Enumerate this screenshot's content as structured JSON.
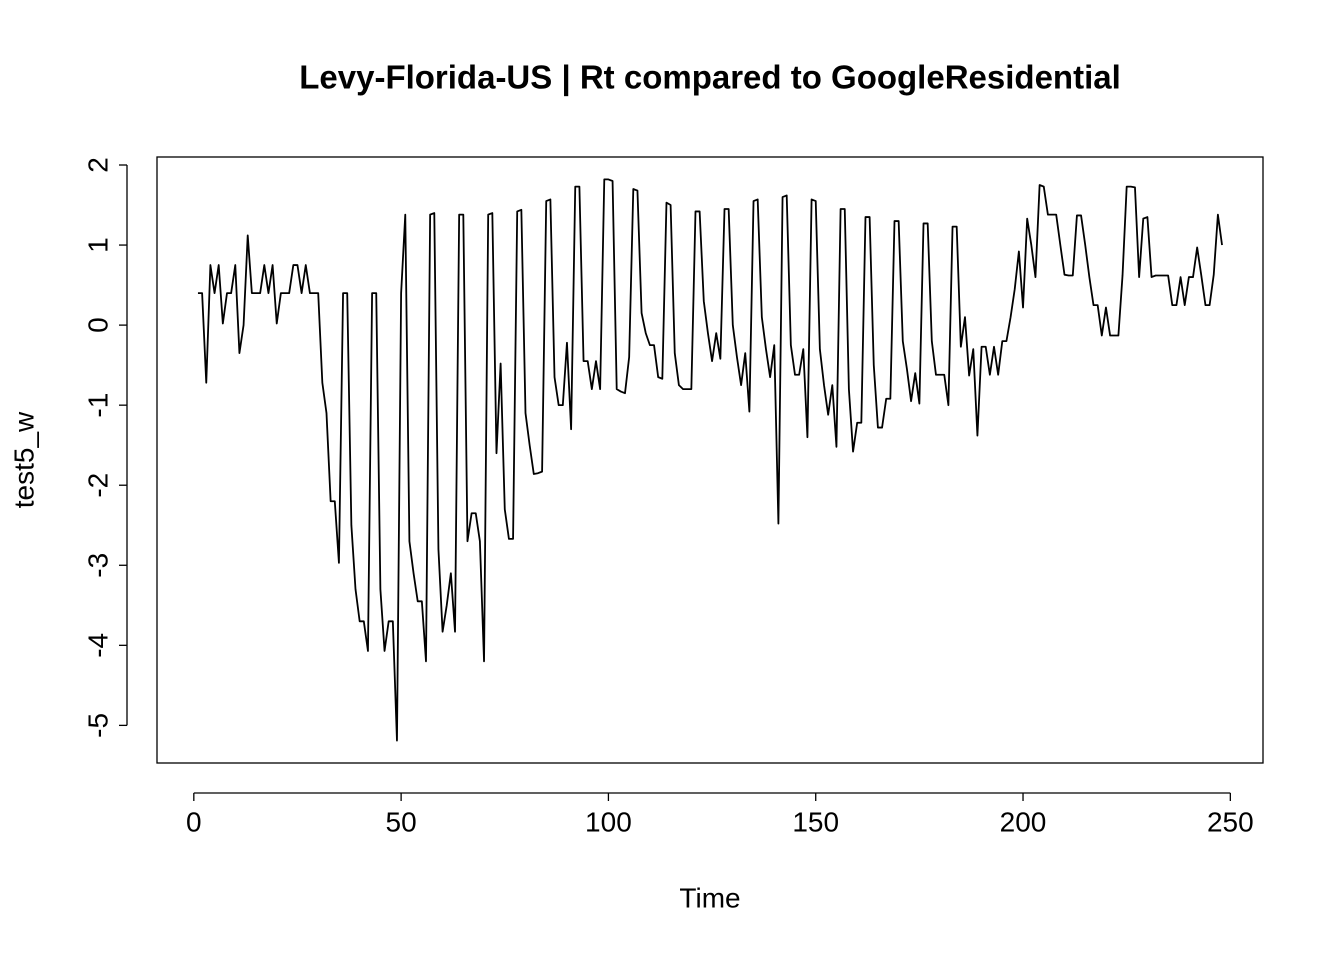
{
  "chart_data": {
    "type": "line",
    "title": "Levy-Florida-US | Rt compared to GoogleResidential",
    "xlabel": "Time",
    "ylabel": "test5_w",
    "x": [
      1,
      2,
      3,
      4,
      5,
      6,
      7,
      8,
      9,
      10,
      11,
      12,
      13,
      14,
      15,
      16,
      17,
      18,
      19,
      20,
      21,
      22,
      23,
      24,
      25,
      26,
      27,
      28,
      29,
      30,
      31,
      32,
      33,
      34,
      35,
      36,
      37,
      38,
      39,
      40,
      41,
      42,
      43,
      44,
      45,
      46,
      47,
      48,
      49,
      50,
      51,
      52,
      53,
      54,
      55,
      56,
      57,
      58,
      59,
      60,
      61,
      62,
      63,
      64,
      65,
      66,
      67,
      68,
      69,
      70,
      71,
      72,
      73,
      74,
      75,
      76,
      77,
      78,
      79,
      80,
      81,
      82,
      83,
      84,
      85,
      86,
      87,
      88,
      89,
      90,
      91,
      92,
      93,
      94,
      95,
      96,
      97,
      98,
      99,
      100,
      101,
      102,
      103,
      104,
      105,
      106,
      107,
      108,
      109,
      110,
      111,
      112,
      113,
      114,
      115,
      116,
      117,
      118,
      119,
      120,
      121,
      122,
      123,
      124,
      125,
      126,
      127,
      128,
      129,
      130,
      131,
      132,
      133,
      134,
      135,
      136,
      137,
      138,
      139,
      140,
      141,
      142,
      143,
      144,
      145,
      146,
      147,
      148,
      149,
      150,
      151,
      152,
      153,
      154,
      155,
      156,
      157,
      158,
      159,
      160,
      161,
      162,
      163,
      164,
      165,
      166,
      167,
      168,
      169,
      170,
      171,
      172,
      173,
      174,
      175,
      176,
      177,
      178,
      179,
      180,
      181,
      182,
      183,
      184,
      185,
      186,
      187,
      188,
      189,
      190,
      191,
      192,
      193,
      194,
      195,
      196,
      197,
      198,
      199,
      200,
      201,
      202,
      203,
      204,
      205,
      206,
      207,
      208,
      209,
      210,
      211,
      212,
      213,
      214,
      215,
      216,
      217,
      218,
      219,
      220,
      221,
      222,
      223,
      224,
      225,
      226,
      227,
      228,
      229,
      230,
      231,
      232,
      233,
      234,
      235,
      236,
      237,
      238,
      239,
      240,
      241,
      242,
      243,
      244,
      245,
      246,
      247,
      248
    ],
    "values": [
      0.4,
      0.4,
      -0.72,
      0.75,
      0.4,
      0.75,
      0.02,
      0.4,
      0.4,
      0.75,
      -0.35,
      0.0,
      1.12,
      0.4,
      0.4,
      0.4,
      0.75,
      0.4,
      0.75,
      0.02,
      0.4,
      0.4,
      0.4,
      0.75,
      0.75,
      0.4,
      0.75,
      0.4,
      0.4,
      0.4,
      -0.72,
      -1.1,
      -2.2,
      -2.2,
      -2.97,
      0.4,
      0.4,
      -2.5,
      -3.3,
      -3.7,
      -3.7,
      -4.07,
      0.4,
      0.4,
      -3.3,
      -4.07,
      -3.7,
      -3.7,
      -5.19,
      0.4,
      1.38,
      -2.7,
      -3.1,
      -3.45,
      -3.45,
      -4.2,
      1.38,
      1.4,
      -2.8,
      -3.83,
      -3.5,
      -3.1,
      -3.83,
      1.38,
      1.38,
      -2.7,
      -2.35,
      -2.35,
      -2.7,
      -4.2,
      1.38,
      1.4,
      -1.6,
      -0.48,
      -2.3,
      -2.67,
      -2.67,
      1.42,
      1.44,
      -1.1,
      -1.5,
      -1.86,
      -1.85,
      -1.83,
      1.55,
      1.57,
      -0.65,
      -1.0,
      -1.0,
      -0.22,
      -1.3,
      1.73,
      1.73,
      -0.45,
      -0.45,
      -0.8,
      -0.45,
      -0.8,
      1.82,
      1.82,
      1.8,
      -0.8,
      -0.83,
      -0.85,
      -0.4,
      1.7,
      1.68,
      0.15,
      -0.1,
      -0.25,
      -0.25,
      -0.65,
      -0.67,
      1.53,
      1.5,
      -0.35,
      -0.75,
      -0.8,
      -0.8,
      -0.8,
      1.42,
      1.42,
      0.3,
      -0.1,
      -0.45,
      -0.1,
      -0.42,
      1.45,
      1.45,
      0.0,
      -0.4,
      -0.75,
      -0.35,
      -1.08,
      1.55,
      1.57,
      0.1,
      -0.3,
      -0.65,
      -0.25,
      -2.48,
      1.6,
      1.62,
      -0.25,
      -0.62,
      -0.62,
      -0.3,
      -1.4,
      1.57,
      1.55,
      -0.3,
      -0.75,
      -1.12,
      -0.75,
      -1.52,
      1.45,
      1.45,
      -0.8,
      -1.58,
      -1.22,
      -1.22,
      1.35,
      1.35,
      -0.5,
      -1.28,
      -1.28,
      -0.92,
      -0.92,
      1.3,
      1.3,
      -0.2,
      -0.55,
      -0.95,
      -0.6,
      -0.98,
      1.27,
      1.27,
      -0.2,
      -0.62,
      -0.62,
      -0.62,
      -1.0,
      1.23,
      1.23,
      -0.27,
      0.1,
      -0.63,
      -0.3,
      -1.38,
      -0.27,
      -0.27,
      -0.62,
      -0.27,
      -0.62,
      -0.2,
      -0.2,
      0.1,
      0.45,
      0.92,
      0.22,
      1.33,
      1.0,
      0.6,
      1.75,
      1.73,
      1.38,
      1.38,
      1.38,
      1.0,
      0.63,
      0.62,
      0.62,
      1.37,
      1.37,
      1.0,
      0.6,
      0.25,
      0.25,
      -0.13,
      0.22,
      -0.13,
      -0.13,
      -0.13,
      0.62,
      1.73,
      1.73,
      1.72,
      0.6,
      1.33,
      1.35,
      0.6,
      0.62,
      0.62,
      0.62,
      0.62,
      0.25,
      0.25,
      0.6,
      0.25,
      0.6,
      0.6,
      0.97,
      0.62,
      0.25,
      0.25,
      0.63,
      1.38,
      1.0
    ],
    "color": "#000000",
    "xlim": [
      -8.88,
      257.88
    ],
    "ylim": [
      -5.47,
      2.1
    ],
    "xticks": [
      0,
      50,
      100,
      150,
      200,
      250
    ],
    "yticks": [
      -5,
      -4,
      -3,
      -2,
      -1,
      0,
      1,
      2
    ]
  }
}
